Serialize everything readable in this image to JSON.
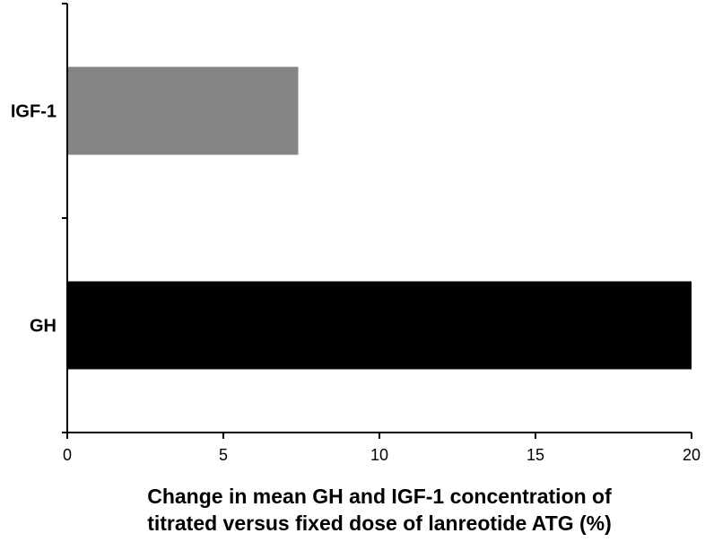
{
  "chart_data": {
    "type": "bar",
    "orientation": "horizontal",
    "categories": [
      "IGF-1",
      "GH"
    ],
    "values": [
      7.4,
      20
    ],
    "colors": [
      "#858585",
      "#000000"
    ],
    "xlabel_lines": [
      "Change in mean GH and IGF-1 concentration of",
      "titrated versus fixed dose of lanreotide ATG (%)"
    ],
    "xlim": [
      0,
      20
    ],
    "xticks": [
      "0",
      "5",
      "10",
      "15",
      "20"
    ],
    "grid": false,
    "legend": "none"
  }
}
